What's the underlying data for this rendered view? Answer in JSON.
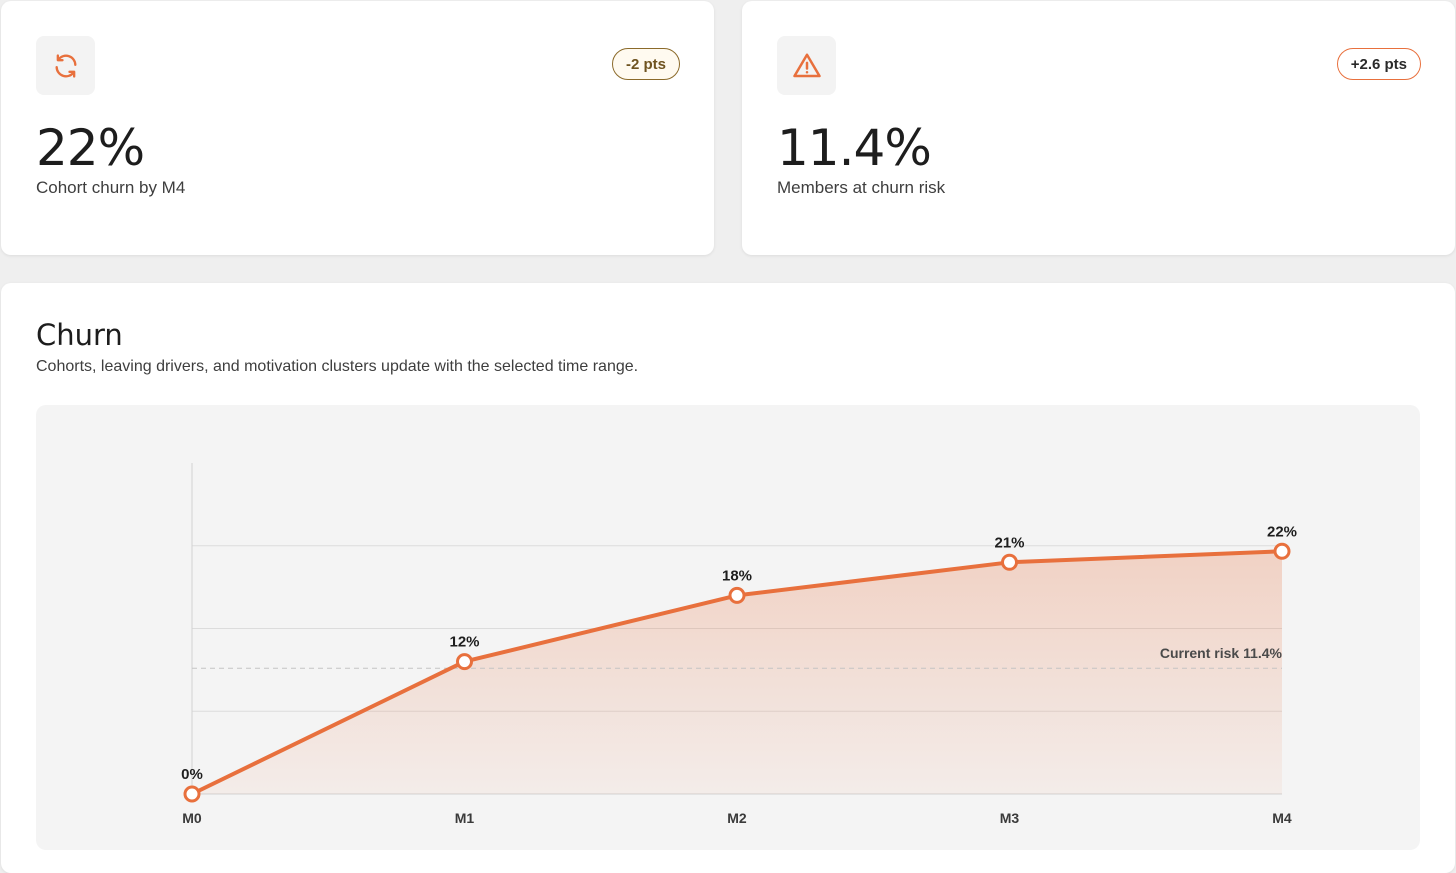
{
  "kpis": [
    {
      "icon": "refresh-icon",
      "badge": "-2 pts",
      "badge_tone": "neutral",
      "value": "22%",
      "label": "Cohort churn by M4"
    },
    {
      "icon": "warning-icon",
      "badge": "+2.6 pts",
      "badge_tone": "up",
      "value": "11.4%",
      "label": "Members at churn risk"
    }
  ],
  "colors": {
    "accent": "#e8703d",
    "badge_neutral": "#8b6a2a",
    "panel": "#f4f4f4"
  },
  "panel": {
    "title": "Churn",
    "subtitle": "Cohorts, leaving drivers, and motivation clusters update with the selected time range."
  },
  "chart_data": {
    "type": "area",
    "categories": [
      "M0",
      "M1",
      "M2",
      "M3",
      "M4"
    ],
    "values": [
      0,
      12,
      18,
      21,
      22
    ],
    "data_labels": [
      "0%",
      "12%",
      "18%",
      "21%",
      "22%"
    ],
    "ylim": [
      0,
      30
    ],
    "yticks": [
      0,
      7.5,
      15,
      22.5
    ],
    "grid": true,
    "reference_line": {
      "value": 11.4,
      "label": "Current risk 11.4%"
    },
    "title": "",
    "xlabel": "",
    "ylabel": ""
  }
}
